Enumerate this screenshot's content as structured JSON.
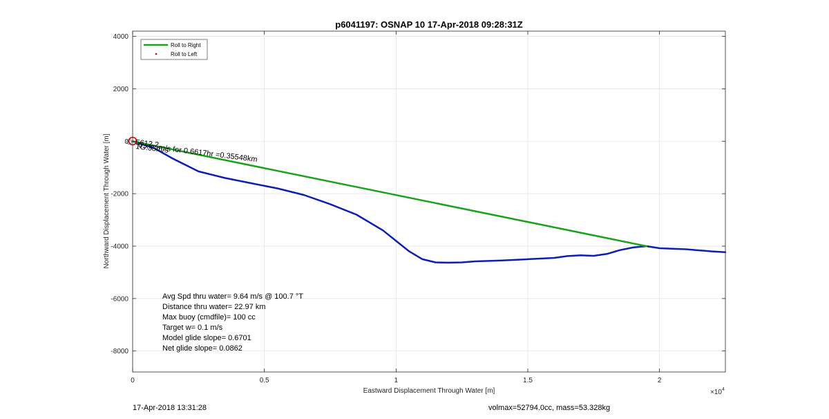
{
  "chart_data": {
    "type": "line",
    "title": "p6041197: OSNAP 10 17-Apr-2018 09:28:31Z",
    "xlabel": "Eastward Displacement Through Water [m]",
    "ylabel": "Northward Displacement Through Water [m]",
    "x_exponent_label": "×10",
    "x_exponent_power": "4",
    "xlim": [
      0,
      22500
    ],
    "ylim": [
      -8800,
      4200
    ],
    "x_ticks": [
      0,
      5000,
      10000,
      15000,
      20000
    ],
    "x_tick_labels": [
      "0",
      "0.5",
      "1",
      "1.5",
      "2"
    ],
    "y_ticks": [
      -8000,
      -6000,
      -4000,
      -2000,
      0,
      2000,
      4000
    ],
    "y_tick_labels": [
      "-8000",
      "-6000",
      "-4000",
      "-2000",
      "0",
      "2000",
      "4000"
    ],
    "grid": true,
    "legend": {
      "placement": "top-left",
      "entries": [
        {
          "label": "Roll to Right",
          "color": "#1aa31a",
          "style": "line"
        },
        {
          "label": "Roll to Left",
          "color": "#cc0000",
          "style": "dot"
        }
      ]
    },
    "series": [
      {
        "color": "#0b1fb5",
        "x": [
          0,
          300,
          800,
          1500,
          2500,
          3500,
          4500,
          5500,
          6500,
          7500,
          8500,
          9500,
          10000,
          10500,
          11000,
          11500,
          12000,
          12500,
          13000,
          14000,
          15000,
          16000,
          16500,
          17000,
          17500,
          18000,
          18500,
          19000,
          19500,
          20000,
          21000,
          22000,
          22500
        ],
        "y": [
          0,
          -100,
          -250,
          -650,
          -1150,
          -1400,
          -1600,
          -1800,
          -2050,
          -2400,
          -2800,
          -3400,
          -3800,
          -4200,
          -4500,
          -4620,
          -4630,
          -4620,
          -4580,
          -4550,
          -4500,
          -4450,
          -4380,
          -4350,
          -4370,
          -4300,
          -4150,
          -4050,
          -4000,
          -4080,
          -4120,
          -4200,
          -4230
        ]
      },
      {
        "color": "#1aa31a",
        "x": [
          0,
          19500
        ],
        "y": [
          0,
          -4000
        ]
      }
    ],
    "annotations": [
      {
        "text": "0.x:c..m/s for 0.6617hr =0.35548km",
        "x": 200,
        "y": -50,
        "angle": 7
      },
      {
        "text": "5612.2",
        "x": 80,
        "y": -80,
        "angle": 7
      },
      {
        "text": "1G.35m/s",
        "x": 80,
        "y": -160,
        "angle": 7
      }
    ],
    "stats": [
      "Avg Spd thru water=  9.64 m/s @ 100.7 °T",
      "Distance thru water= 22.97 km",
      "Max buoy (cmdfile)= 100 cc",
      "Target w= 0.1 m/s",
      "Model glide slope= 0.6701",
      "Net glide slope= 0.0862"
    ]
  },
  "footer": {
    "left": "17-Apr-2018 13:31:28",
    "right": "volmax=52794.0cc, mass=53.328kg"
  }
}
